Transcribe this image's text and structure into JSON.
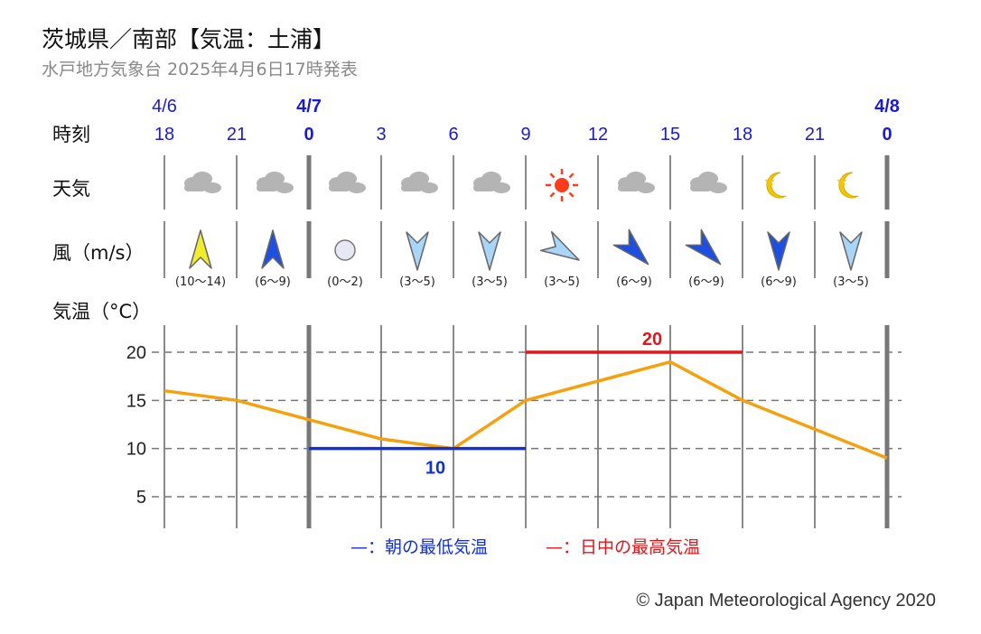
{
  "header": {
    "title": "茨城県／南部【気温：土浦】",
    "subtitle": "水戸地方気象台 2025年4月6日17時発表"
  },
  "row_labels": {
    "time": "時刻",
    "weather": "天気",
    "wind": "風（m/s）",
    "temp": "気温（°C）"
  },
  "chart_data": {
    "type": "line",
    "dates": [
      {
        "label": "4/6",
        "at_index": 0,
        "bold": false
      },
      {
        "label": "4/7",
        "at_index": 2,
        "bold": true
      },
      {
        "label": "4/8",
        "at_index": 10,
        "bold": true
      }
    ],
    "hours": [
      "18",
      "21",
      "0",
      "3",
      "6",
      "9",
      "12",
      "15",
      "18",
      "21",
      "0"
    ],
    "day_boundaries": [
      2,
      10
    ],
    "weather": [
      "cloudy",
      "cloudy",
      "cloudy",
      "cloudy",
      "cloudy",
      "sunny",
      "cloudy",
      "cloudy",
      "moon",
      "moon"
    ],
    "wind": [
      {
        "dir_deg": 180,
        "range": "(10〜14)",
        "color": "#f2ec2e"
      },
      {
        "dir_deg": 180,
        "range": "(6〜9)",
        "color": "#1e4fe0"
      },
      {
        "dir_deg": null,
        "range": "(0〜2)",
        "color": "#e8e8f4"
      },
      {
        "dir_deg": 0,
        "range": "(3〜5)",
        "color": "#a9d5f8"
      },
      {
        "dir_deg": 0,
        "range": "(3〜5)",
        "color": "#a9d5f8"
      },
      {
        "dir_deg": 300,
        "range": "(3〜5)",
        "color": "#a9d5f8"
      },
      {
        "dir_deg": 315,
        "range": "(6〜9)",
        "color": "#1e4fe0"
      },
      {
        "dir_deg": 315,
        "range": "(6〜9)",
        "color": "#1e4fe0"
      },
      {
        "dir_deg": 0,
        "range": "(6〜9)",
        "color": "#1e4fe0"
      },
      {
        "dir_deg": 0,
        "range": "(3〜5)",
        "color": "#a9d5f8"
      }
    ],
    "temperature": {
      "values": [
        16,
        15,
        13,
        11,
        10,
        15,
        17,
        19,
        15,
        12,
        9
      ],
      "color": "#f5a10f"
    },
    "ylim": [
      2,
      23
    ],
    "yticks": [
      5,
      10,
      15,
      20
    ],
    "min_temp": {
      "value": 10,
      "from_index": 2,
      "to_index": 5,
      "label": "10",
      "color": "#1230d8"
    },
    "max_temp": {
      "value": 20,
      "from_index": 5,
      "to_index": 8,
      "label": "20",
      "color": "#e0161b"
    },
    "legend": [
      {
        "mark": "—",
        "text": "：朝の最低気温",
        "color": "#1230d8"
      },
      {
        "mark": "—",
        "text": "：日中の最高気温",
        "color": "#e0161b"
      }
    ]
  },
  "footer": {
    "copyright": "© Japan Meteorological Agency 2020"
  }
}
